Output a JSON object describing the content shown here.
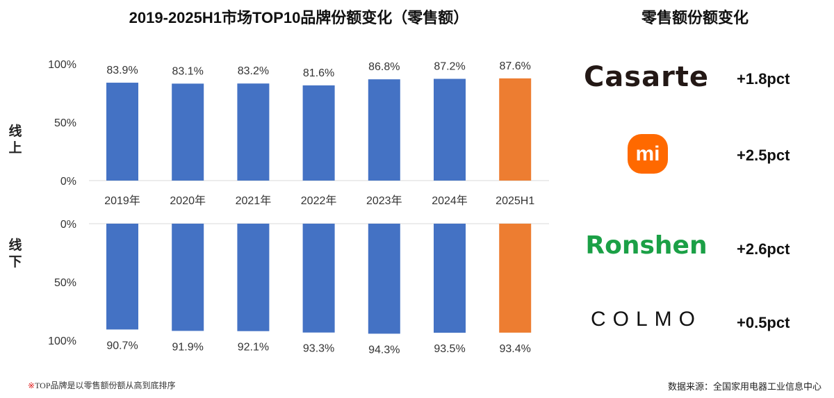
{
  "title": "2019-2025H1市场TOP10品牌份额变化（零售额）",
  "right_title": "零售额份额变化",
  "side_labels": {
    "online": [
      "线",
      "上"
    ],
    "offline": [
      "线",
      "下"
    ]
  },
  "chart_data": {
    "type": "bar",
    "categories": [
      "2019年",
      "2020年",
      "2021年",
      "2022年",
      "2023年",
      "2024年",
      "2025H1"
    ],
    "series": [
      {
        "name": "线上",
        "values": [
          83.9,
          83.1,
          83.2,
          81.6,
          86.8,
          87.2,
          87.6
        ],
        "labels": [
          "83.9%",
          "83.1%",
          "83.2%",
          "81.6%",
          "86.8%",
          "87.2%",
          "87.6%"
        ]
      },
      {
        "name": "线下",
        "values": [
          90.7,
          91.9,
          92.1,
          93.3,
          94.3,
          93.5,
          93.4
        ],
        "labels": [
          "90.7%",
          "91.9%",
          "92.1%",
          "93.3%",
          "94.3%",
          "93.5%",
          "93.4%"
        ]
      }
    ],
    "yticks": [
      "0%",
      "50%",
      "100%"
    ],
    "ylim": [
      0,
      100
    ],
    "colors": {
      "default": "#4472C4",
      "highlight": "#ED7D31"
    },
    "highlight_index": 6
  },
  "brands": [
    {
      "name": "Casarte",
      "change": "+1.8pct",
      "color": "#231815"
    },
    {
      "name": "mi",
      "change": "+2.5pct",
      "color": "#FF6900"
    },
    {
      "name": "Ronshen",
      "change": "+2.6pct",
      "color": "#1BA046"
    },
    {
      "name": "COLMO",
      "change": "+0.5pct",
      "color": "#111111"
    }
  ],
  "footnote": {
    "mark": "※",
    "text": "TOP品牌是以零售额份额从高到底排序"
  },
  "source": "数据来源：全国家用电器工业信息中心"
}
